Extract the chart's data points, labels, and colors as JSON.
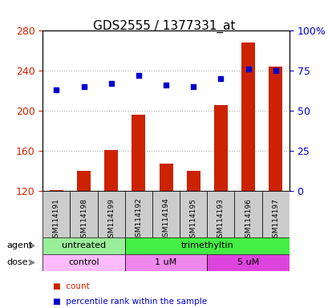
{
  "title": "GDS2555 / 1377331_at",
  "samples": [
    "GSM114191",
    "GSM114198",
    "GSM114199",
    "GSM114192",
    "GSM114194",
    "GSM114195",
    "GSM114193",
    "GSM114196",
    "GSM114197"
  ],
  "bar_values": [
    121,
    140,
    161,
    196,
    147,
    140,
    206,
    268,
    244
  ],
  "dot_values": [
    63,
    65,
    67,
    72,
    66,
    65,
    70,
    76,
    75
  ],
  "bar_color": "#cc2200",
  "dot_color": "#0000cc",
  "ylim_left": [
    120,
    280
  ],
  "ylim_right": [
    0,
    100
  ],
  "yticks_left": [
    120,
    160,
    200,
    240,
    280
  ],
  "yticks_right": [
    0,
    25,
    50,
    75,
    100
  ],
  "yticklabels_right": [
    "0",
    "25",
    "50",
    "75",
    "100%"
  ],
  "agent_groups": [
    {
      "label": "untreated",
      "span": [
        0,
        3
      ],
      "color": "#99ee99"
    },
    {
      "label": "trimethyltin",
      "span": [
        3,
        9
      ],
      "color": "#44ee44"
    }
  ],
  "dose_groups": [
    {
      "label": "control",
      "span": [
        0,
        3
      ],
      "color": "#ffbbff"
    },
    {
      "label": "1 uM",
      "span": [
        3,
        6
      ],
      "color": "#ee88ee"
    },
    {
      "label": "5 uM",
      "span": [
        6,
        9
      ],
      "color": "#dd44dd"
    }
  ],
  "legend_items": [
    {
      "label": "count",
      "color": "#cc2200"
    },
    {
      "label": "percentile rank within the sample",
      "color": "#0000cc"
    }
  ],
  "bg_color": "#ffffff",
  "plot_bg": "#ffffff",
  "grid_color": "#aaaaaa",
  "label_color_left": "#cc2200",
  "label_color_right": "#0000cc",
  "agent_label": "agent",
  "dose_label": "dose",
  "sample_bg": "#cccccc"
}
